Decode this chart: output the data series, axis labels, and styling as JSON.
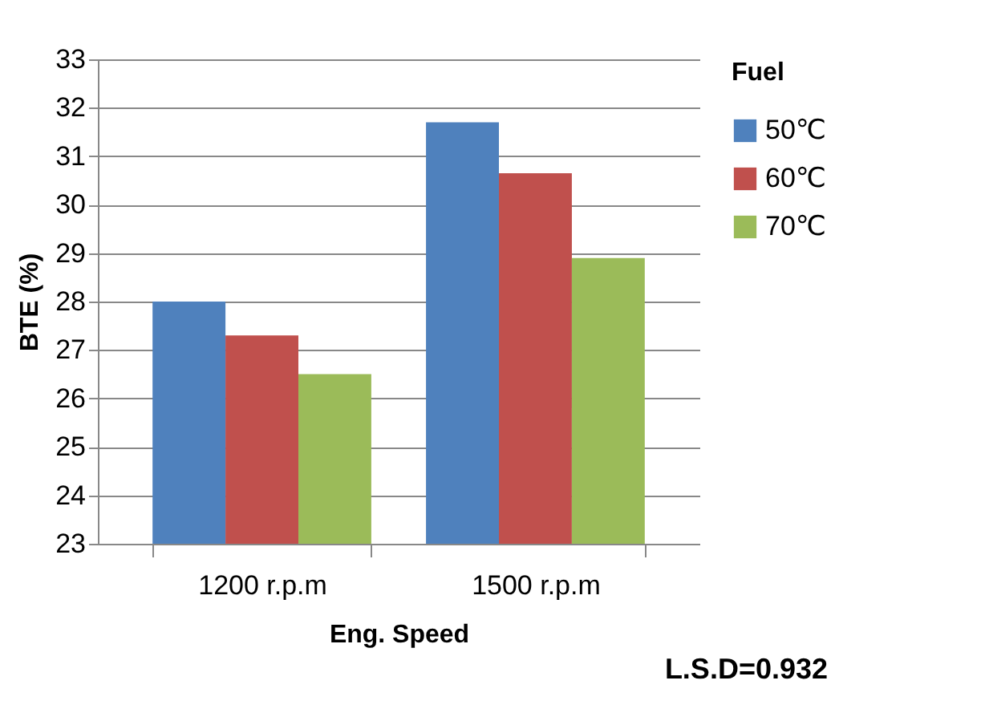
{
  "chart_data": {
    "type": "bar",
    "xlabel": "Eng. Speed",
    "ylabel": "BTE (%)",
    "legend_title": "Fuel",
    "categories": [
      "1200 r.p.m",
      "1500 r.p.m"
    ],
    "series": [
      {
        "name": "50℃",
        "color": "#4f81bd",
        "values": [
          28.0,
          31.7
        ]
      },
      {
        "name": "60℃",
        "color": "#c0504d",
        "values": [
          27.3,
          30.65
        ]
      },
      {
        "name": "70℃",
        "color": "#9bbb59",
        "values": [
          26.5,
          28.9
        ]
      }
    ],
    "ylim": [
      23,
      33
    ],
    "yticks": [
      23,
      24,
      25,
      26,
      27,
      28,
      29,
      30,
      31,
      32,
      33
    ],
    "grid": "y",
    "legend": "right",
    "annotations": [
      "L.S.D=0.932"
    ]
  }
}
